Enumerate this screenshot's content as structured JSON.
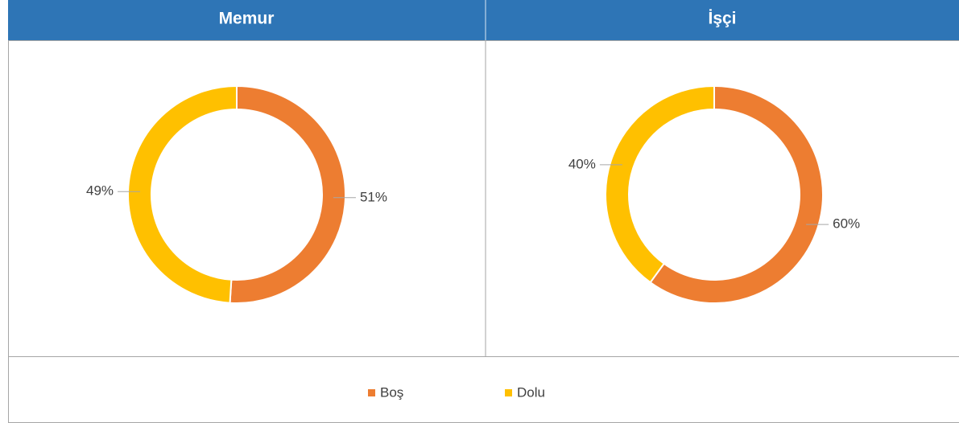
{
  "chart_data": [
    {
      "type": "pie",
      "title": "Memur",
      "categories": [
        "Boş",
        "Dolu"
      ],
      "values": [
        51,
        49
      ],
      "value_labels": [
        "51%",
        "49%"
      ],
      "colors": [
        "#ed7d31",
        "#ffc000"
      ]
    },
    {
      "type": "pie",
      "title": "İşçi",
      "categories": [
        "Boş",
        "Dolu"
      ],
      "values": [
        60,
        40
      ],
      "value_labels": [
        "60%",
        "40%"
      ],
      "colors": [
        "#ed7d31",
        "#ffc000"
      ]
    }
  ]
}
